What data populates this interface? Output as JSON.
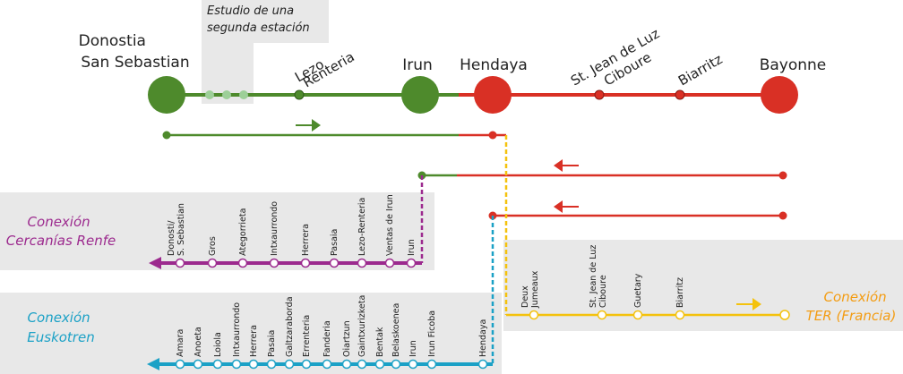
{
  "colors": {
    "green": "#4e8a2c",
    "red": "#d93025",
    "yellow": "#f4c20d",
    "purple": "#9c2a8e",
    "blue": "#1ba1c6",
    "panel": "#e8e8e8"
  },
  "main_line": {
    "stations": [
      {
        "lines": [
          "Donostia",
          "San Sebastian"
        ]
      },
      {
        "lines": [
          "Lezo",
          "Renteria"
        ]
      },
      {
        "lines": [
          "Irun"
        ]
      },
      {
        "lines": [
          "Hendaya"
        ]
      },
      {
        "lines": [
          "St. Jean de Luz",
          "Ciboure"
        ]
      },
      {
        "lines": [
          "Biarritz"
        ]
      },
      {
        "lines": [
          "Bayonne"
        ]
      }
    ],
    "study_label": [
      "Estudio de una",
      "segunda estación"
    ]
  },
  "connections": {
    "renfe": {
      "title": [
        "Conexión",
        "Cercanías Renfe"
      ],
      "stations": [
        "Donosti/ S. Sebastian",
        "Gros",
        "Ategorrieta",
        "Intxaurrondo",
        "Herrera",
        "Pasaia",
        "Lezo-Renteria",
        "Ventas de Irun",
        "Irun"
      ]
    },
    "euskotren": {
      "title": [
        "Conexión",
        "Euskotren"
      ],
      "stations": [
        "Amara",
        "Anoeta",
        "Loiola",
        "Intxaurrondo",
        "Herrera",
        "Pasaia",
        "Galtzaraborda",
        "Errenteria",
        "Fanderia",
        "Oiartzun",
        "Gaintxurizketa",
        "Bentak",
        "Belaskoenea",
        "Irun",
        "Irun Ficoba",
        "Hendaya"
      ]
    },
    "ter": {
      "title": [
        "Conexión",
        "TER (Francia)"
      ],
      "stations": [
        "Deux Jumeaux",
        "St. Jean de Luz Ciboure",
        "Guetary",
        "Biarritz"
      ]
    }
  }
}
